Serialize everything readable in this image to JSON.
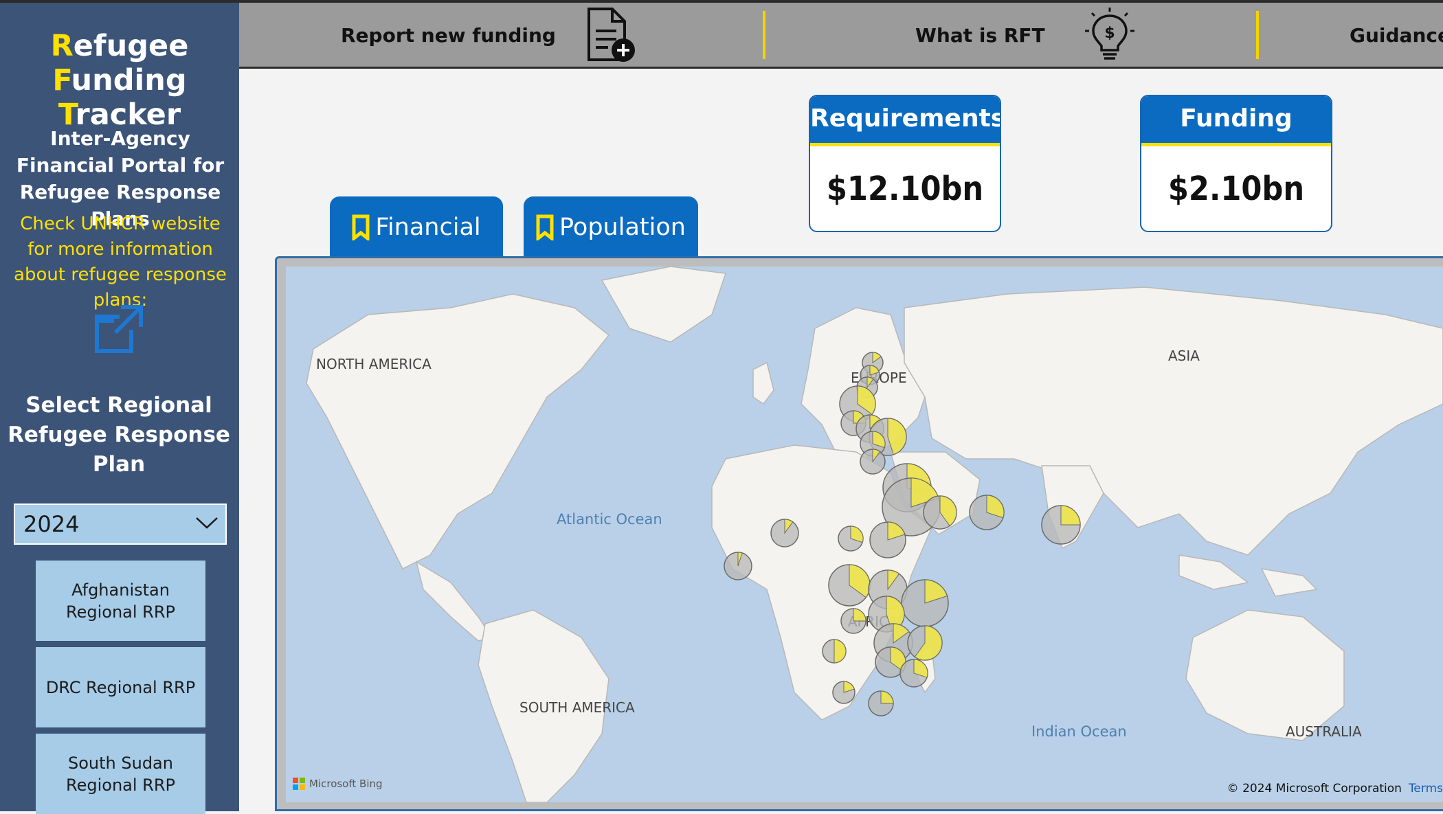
{
  "sidebar": {
    "title_line1_first": "R",
    "title_line1_rest": "efugee",
    "title_line2_first": "F",
    "title_line2_mid": "unding ",
    "title_line2_first2": "T",
    "title_line2_rest": "racker",
    "subtitle": "Inter-Agency Financial Portal for Refugee Response Plans",
    "info": "Check UNHCR website for more information about refugee response plans:",
    "select_heading": "Select Regional Refugee Response Plan",
    "year": "2024",
    "plans": [
      "Afghanistan Regional RRP",
      "DRC Regional RRP",
      "South Sudan Regional RRP"
    ]
  },
  "nav": {
    "report": "Report new funding",
    "what": "What is RFT",
    "guidance": "Guidance"
  },
  "kpis": {
    "requirements_label": "Requirements",
    "requirements_value": "$12.10bn",
    "funding_label": "Funding",
    "funding_value": "$2.10bn"
  },
  "tabs": {
    "financial": "Financial",
    "population": "Population"
  },
  "map": {
    "labels": {
      "north_america": "NORTH AMERICA",
      "europe": "EUROPE",
      "asia": "ASIA",
      "africa": "AFRICA",
      "south_america": "SOUTH AMERICA",
      "australia": "AUSTRALIA",
      "atlantic": "Atlantic Ocean",
      "indian": "Indian Ocean"
    },
    "bing": "Microsoft Bing",
    "copyright": "© 2024 Microsoft Corporation",
    "terms": "Terms"
  },
  "colors": {
    "sidebar": "#3c5478",
    "accent_yellow": "#ffe000",
    "brand_blue": "#0a6bc1",
    "button_blue": "#a6cce8",
    "pie_funded": "#f0e54a",
    "pie_unfunded": "#b8b8b8"
  }
}
